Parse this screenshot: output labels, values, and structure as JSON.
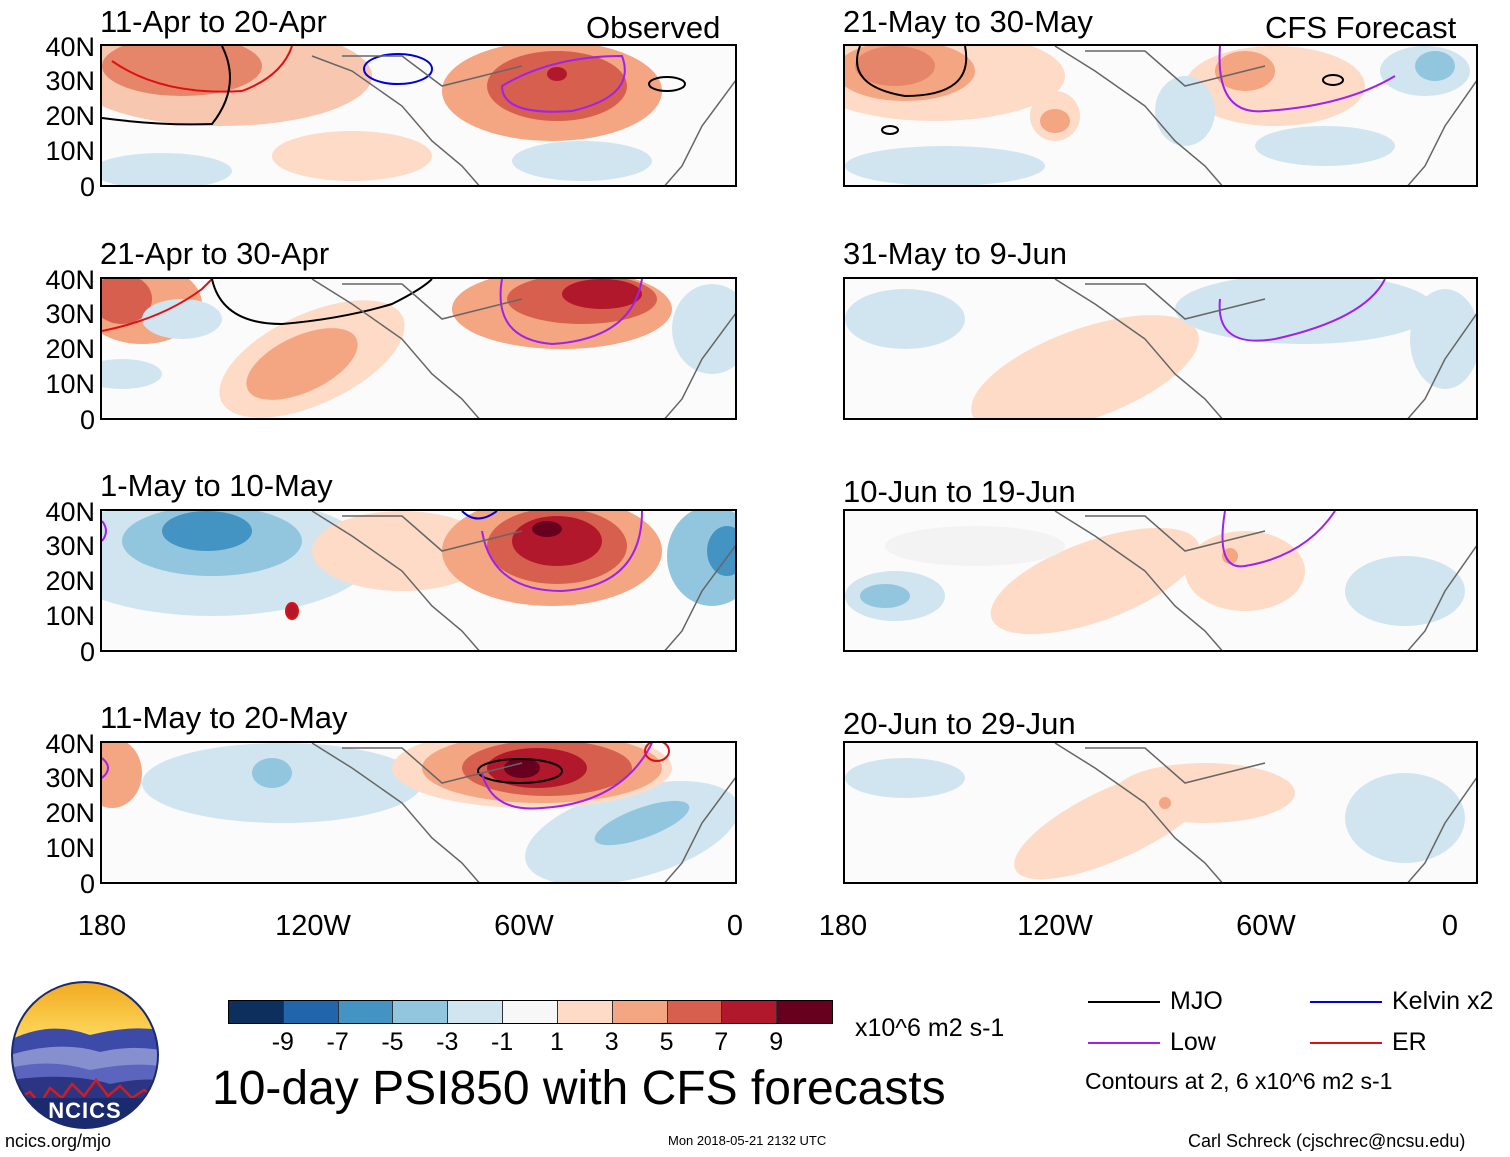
{
  "panels": {
    "observed": [
      {
        "title": "11-Apr to 20-Apr",
        "label": "Observed"
      },
      {
        "title": "21-Apr to 30-Apr",
        "label": ""
      },
      {
        "title": "1-May to 10-May",
        "label": ""
      },
      {
        "title": "11-May to 20-May",
        "label": ""
      }
    ],
    "forecast": [
      {
        "title": "21-May to 30-May",
        "label": "CFS Forecast"
      },
      {
        "title": "31-May to 9-Jun",
        "label": ""
      },
      {
        "title": "10-Jun to 19-Jun",
        "label": ""
      },
      {
        "title": "20-Jun to 29-Jun",
        "label": ""
      }
    ]
  },
  "lat_labels": [
    "40N",
    "30N",
    "20N",
    "10N",
    "0"
  ],
  "lon_labels": [
    "180",
    "120W",
    "60W",
    "0"
  ],
  "colorbar": {
    "colors": [
      "#0d2f5e",
      "#2166ac",
      "#4393c3",
      "#92c5de",
      "#d1e5f0",
      "#f7f7f7",
      "#fddbc7",
      "#f4a582",
      "#d6604d",
      "#b2182b",
      "#67001f"
    ],
    "labels": [
      "-9",
      "-7",
      "-5",
      "-3",
      "-1",
      "1",
      "3",
      "5",
      "7",
      "9"
    ],
    "units": "x10^6 m2 s-1"
  },
  "main_title": "10-day PSI850 with CFS forecasts",
  "legend": {
    "mjo": "MJO",
    "kelvin": "Kelvin x2",
    "low": "Low",
    "er": "ER",
    "contours_note": "Contours at 2, 6 x10^6 m2 s-1",
    "colors": {
      "mjo": "#000000",
      "kelvin": "#0000dd",
      "low": "#a020f0",
      "er": "#e01010"
    }
  },
  "logo_text": "NCICS",
  "footer": {
    "left": "ncics.org/mjo",
    "center": "Mon 2018-05-21 2132 UTC",
    "right": "Carl Schreck (cjschrec@ncsu.edu)"
  }
}
